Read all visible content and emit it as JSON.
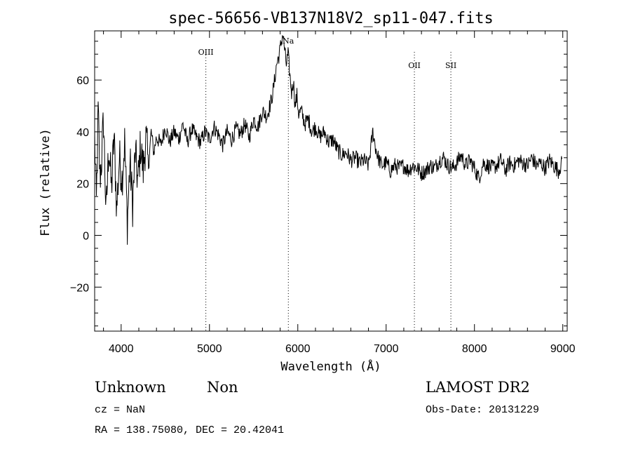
{
  "chart_data": {
    "type": "line",
    "title": "spec-56656-VB137N18V2_sp11-047.fits",
    "xlabel": "Wavelength (Å)",
    "ylabel": "Flux (relative)",
    "xlim": [
      3700,
      9050
    ],
    "ylim": [
      -37,
      79
    ],
    "x_ticks": [
      4000,
      5000,
      6000,
      7000,
      8000,
      9000
    ],
    "y_ticks": [
      -20,
      0,
      20,
      40,
      60
    ],
    "grid": false,
    "series": [
      {
        "x": [
          3700,
          3720,
          3740,
          3760,
          3780,
          3800,
          3830,
          3860,
          3890,
          3920,
          3950,
          3980,
          4010,
          4040,
          4070,
          4100,
          4130,
          4160,
          4190,
          4220,
          4250,
          4280,
          4310,
          4340,
          4370,
          4400,
          4450,
          4500,
          4550,
          4600,
          4650,
          4700,
          4750,
          4800,
          4850,
          4900,
          4950,
          5000,
          5050,
          5100,
          5150,
          5200,
          5250,
          5300,
          5350,
          5400,
          5450,
          5500,
          5550,
          5600,
          5650,
          5700,
          5730,
          5760,
          5790,
          5810,
          5830,
          5850,
          5870,
          5890,
          5910,
          5930,
          5950,
          5970,
          5990,
          6010,
          6040,
          6080,
          6120,
          6160,
          6200,
          6250,
          6300,
          6350,
          6400,
          6450,
          6500,
          6550,
          6600,
          6650,
          6700,
          6750,
          6800,
          6850,
          6880,
          6910,
          6950,
          7000,
          7050,
          7100,
          7150,
          7200,
          7250,
          7300,
          7350,
          7400,
          7450,
          7500,
          7550,
          7600,
          7650,
          7700,
          7750,
          7800,
          7850,
          7900,
          7950,
          8000,
          8050,
          8100,
          8150,
          8200,
          8250,
          8300,
          8350,
          8400,
          8450,
          8500,
          8550,
          8600,
          8650,
          8700,
          8750,
          8800,
          8850,
          8900,
          8950,
          8990
        ],
        "values": [
          38,
          12,
          48,
          22,
          30,
          45,
          8,
          35,
          18,
          38,
          10,
          30,
          22,
          36,
          5,
          28,
          12,
          32,
          20,
          35,
          25,
          38,
          27,
          40,
          32,
          38,
          35,
          42,
          36,
          40,
          37,
          43,
          36,
          41,
          38,
          36,
          40,
          37,
          42,
          39,
          35,
          40,
          37,
          41,
          39,
          43,
          38,
          45,
          42,
          48,
          46,
          52,
          58,
          66,
          70,
          74,
          78,
          72,
          66,
          70,
          62,
          55,
          60,
          50,
          54,
          47,
          48,
          43,
          45,
          40,
          42,
          38,
          40,
          36,
          37,
          33,
          31,
          32,
          29,
          30,
          28,
          29,
          27,
          40,
          34,
          30,
          27,
          28,
          25,
          27,
          26,
          27,
          25,
          27,
          26,
          24,
          25,
          27,
          26,
          29,
          30,
          27,
          26,
          28,
          31,
          27,
          29,
          26,
          22,
          28,
          27,
          26,
          27,
          29,
          25,
          28,
          27,
          29,
          28,
          27,
          30,
          27,
          28,
          26,
          29,
          27,
          25,
          28
        ]
      }
    ],
    "annotations": [
      {
        "label": "OIII",
        "x": 4959
      },
      {
        "label": "Na",
        "x": 5893
      },
      {
        "label": "OII",
        "x": 7320
      },
      {
        "label": "SII",
        "x": 7733
      }
    ]
  },
  "info": {
    "classification": "Unknown",
    "subclass": "Non",
    "survey": "LAMOST DR2",
    "cz": "cz = NaN",
    "obs_date": "Obs-Date: 20131229",
    "coords": "RA = 138.75080, DEC =  20.42041"
  }
}
